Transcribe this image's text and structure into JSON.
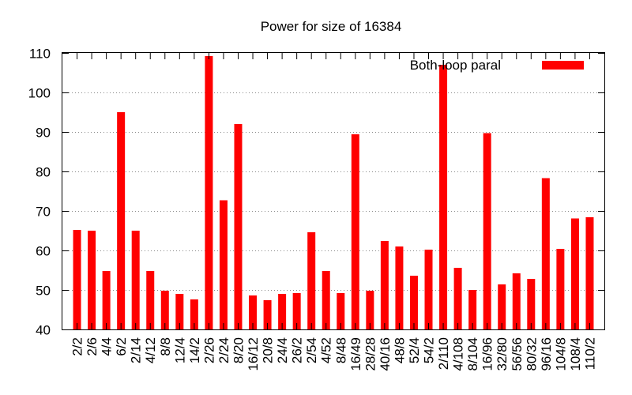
{
  "chart_data": {
    "type": "bar",
    "title": "Power for size of 16384",
    "xlabel": "",
    "ylabel": "",
    "ylim": [
      40,
      110
    ],
    "yticks": [
      40,
      50,
      60,
      70,
      80,
      90,
      100,
      110
    ],
    "grid": true,
    "legend_position": "top-right",
    "categories": [
      "2/2",
      "2/6",
      "4/4",
      "6/2",
      "2/14",
      "4/12",
      "8/8",
      "12/4",
      "14/2",
      "2/26",
      "2/24",
      "8/20",
      "16/12",
      "20/8",
      "24/4",
      "26/2",
      "2/54",
      "4/52",
      "8/48",
      "16/49",
      "28/28",
      "40/16",
      "48/8",
      "52/4",
      "54/2",
      "2/110",
      "4/108",
      "8/104",
      "16/96",
      "32/80",
      "56/56",
      "80/32",
      "96/16",
      "104/8",
      "108/4",
      "110/2"
    ],
    "series": [
      {
        "name": "Both-loop paral",
        "color": "#ff0000",
        "values": [
          65.2,
          65.0,
          54.8,
          95.0,
          65.0,
          54.8,
          49.8,
          49.0,
          47.6,
          109.2,
          72.7,
          92.0,
          48.6,
          47.4,
          49.0,
          49.2,
          64.6,
          54.8,
          49.2,
          89.4,
          49.8,
          62.4,
          61.0,
          53.6,
          60.2,
          107.0,
          55.6,
          50.0,
          89.7,
          51.4,
          54.2,
          52.8,
          78.3,
          60.4,
          68.1,
          68.4
        ]
      }
    ]
  }
}
